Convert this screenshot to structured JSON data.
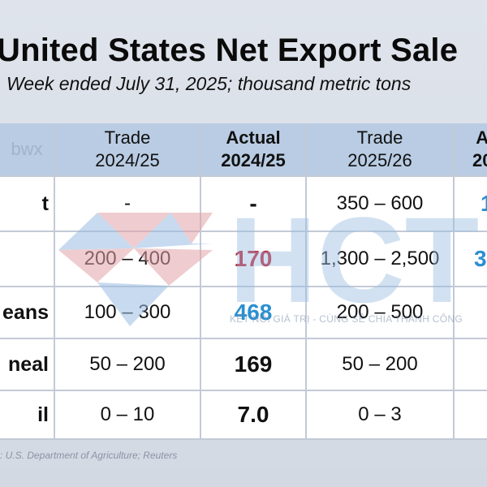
{
  "title": "United States Net Export Sale",
  "subtitle": "Week ended July 31, 2025; thousand metric tons",
  "corner_tag": "bwx",
  "headers": [
    {
      "line1": "Trade",
      "line2": "2024/25"
    },
    {
      "line1": "Actual",
      "line2": "2024/25"
    },
    {
      "line1": "Trade",
      "line2": "2025/26"
    },
    {
      "line1": "A",
      "line2": "20"
    }
  ],
  "rows": [
    {
      "label": "t",
      "trade_2425": "-",
      "actual_2425": "-",
      "trade_2526": "350 – 600",
      "actual_2526": "1"
    },
    {
      "label": "",
      "trade_2425": "200 – 400",
      "actual_2425": "170",
      "trade_2526": "1,300 – 2,500",
      "actual_2526": "3"
    },
    {
      "label": "eans",
      "trade_2425": "100 – 300",
      "actual_2425": "468",
      "trade_2526": "200 – 500",
      "actual_2526": ""
    },
    {
      "label": "neal",
      "trade_2425": "50 – 200",
      "actual_2425": "169",
      "trade_2526": "50 – 200",
      "actual_2526": ""
    },
    {
      "label": "il",
      "trade_2425": "0 – 10",
      "actual_2425": "7.0",
      "trade_2526": "0 – 3",
      "actual_2526": ""
    }
  ],
  "colors": {
    "header_fill": "#b9cce3",
    "actual_red": "#c0192c",
    "actual_blue": "#2c8fd1",
    "watermark_red": "#e3a3a8",
    "watermark_blue": "#9bbde2"
  },
  "source": "s: U.S. Department of Agriculture; Reuters",
  "watermark": {
    "brand": "HCT",
    "slogan": "KẾT NỐI GIÁ TRỊ - CÙNG SẺ CHIA THÀNH CÔNG",
    "logo_icon": "diamond-logo-icon"
  }
}
